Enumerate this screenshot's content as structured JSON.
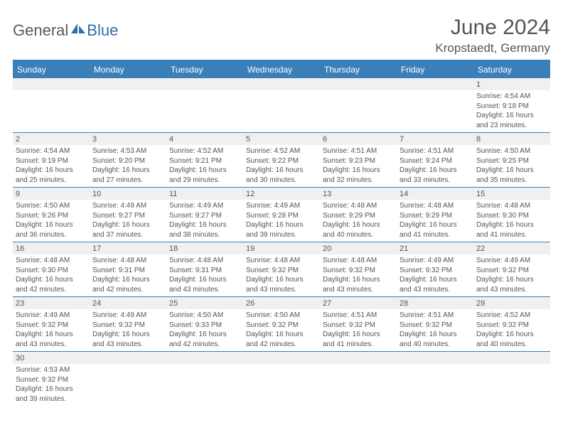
{
  "brand": {
    "part1": "General",
    "part2": "Blue"
  },
  "header": {
    "title": "June 2024",
    "location": "Kropstaedt, Germany"
  },
  "colors": {
    "header_bg": "#3b7fb8",
    "header_text": "#ffffff",
    "grid_line": "#3b7fb8",
    "daynum_bg": "#f0f0f0",
    "text": "#555555",
    "page_bg": "#ffffff"
  },
  "typography": {
    "title_fontsize": 30,
    "location_fontsize": 17,
    "dayheader_fontsize": 12,
    "daynum_fontsize": 11,
    "detail_fontsize": 10
  },
  "day_names": [
    "Sunday",
    "Monday",
    "Tuesday",
    "Wednesday",
    "Thursday",
    "Friday",
    "Saturday"
  ],
  "weeks": [
    {
      "nums": [
        "",
        "",
        "",
        "",
        "",
        "",
        "1"
      ],
      "sunrise": [
        "",
        "",
        "",
        "",
        "",
        "",
        "Sunrise: 4:54 AM"
      ],
      "sunset": [
        "",
        "",
        "",
        "",
        "",
        "",
        "Sunset: 9:18 PM"
      ],
      "day1": [
        "",
        "",
        "",
        "",
        "",
        "",
        "Daylight: 16 hours"
      ],
      "day2": [
        "",
        "",
        "",
        "",
        "",
        "",
        "and 23 minutes."
      ]
    },
    {
      "nums": [
        "2",
        "3",
        "4",
        "5",
        "6",
        "7",
        "8"
      ],
      "sunrise": [
        "Sunrise: 4:54 AM",
        "Sunrise: 4:53 AM",
        "Sunrise: 4:52 AM",
        "Sunrise: 4:52 AM",
        "Sunrise: 4:51 AM",
        "Sunrise: 4:51 AM",
        "Sunrise: 4:50 AM"
      ],
      "sunset": [
        "Sunset: 9:19 PM",
        "Sunset: 9:20 PM",
        "Sunset: 9:21 PM",
        "Sunset: 9:22 PM",
        "Sunset: 9:23 PM",
        "Sunset: 9:24 PM",
        "Sunset: 9:25 PM"
      ],
      "day1": [
        "Daylight: 16 hours",
        "Daylight: 16 hours",
        "Daylight: 16 hours",
        "Daylight: 16 hours",
        "Daylight: 16 hours",
        "Daylight: 16 hours",
        "Daylight: 16 hours"
      ],
      "day2": [
        "and 25 minutes.",
        "and 27 minutes.",
        "and 29 minutes.",
        "and 30 minutes.",
        "and 32 minutes.",
        "and 33 minutes.",
        "and 35 minutes."
      ]
    },
    {
      "nums": [
        "9",
        "10",
        "11",
        "12",
        "13",
        "14",
        "15"
      ],
      "sunrise": [
        "Sunrise: 4:50 AM",
        "Sunrise: 4:49 AM",
        "Sunrise: 4:49 AM",
        "Sunrise: 4:49 AM",
        "Sunrise: 4:48 AM",
        "Sunrise: 4:48 AM",
        "Sunrise: 4:48 AM"
      ],
      "sunset": [
        "Sunset: 9:26 PM",
        "Sunset: 9:27 PM",
        "Sunset: 9:27 PM",
        "Sunset: 9:28 PM",
        "Sunset: 9:29 PM",
        "Sunset: 9:29 PM",
        "Sunset: 9:30 PM"
      ],
      "day1": [
        "Daylight: 16 hours",
        "Daylight: 16 hours",
        "Daylight: 16 hours",
        "Daylight: 16 hours",
        "Daylight: 16 hours",
        "Daylight: 16 hours",
        "Daylight: 16 hours"
      ],
      "day2": [
        "and 36 minutes.",
        "and 37 minutes.",
        "and 38 minutes.",
        "and 39 minutes.",
        "and 40 minutes.",
        "and 41 minutes.",
        "and 41 minutes."
      ]
    },
    {
      "nums": [
        "16",
        "17",
        "18",
        "19",
        "20",
        "21",
        "22"
      ],
      "sunrise": [
        "Sunrise: 4:48 AM",
        "Sunrise: 4:48 AM",
        "Sunrise: 4:48 AM",
        "Sunrise: 4:48 AM",
        "Sunrise: 4:48 AM",
        "Sunrise: 4:49 AM",
        "Sunrise: 4:49 AM"
      ],
      "sunset": [
        "Sunset: 9:30 PM",
        "Sunset: 9:31 PM",
        "Sunset: 9:31 PM",
        "Sunset: 9:32 PM",
        "Sunset: 9:32 PM",
        "Sunset: 9:32 PM",
        "Sunset: 9:32 PM"
      ],
      "day1": [
        "Daylight: 16 hours",
        "Daylight: 16 hours",
        "Daylight: 16 hours",
        "Daylight: 16 hours",
        "Daylight: 16 hours",
        "Daylight: 16 hours",
        "Daylight: 16 hours"
      ],
      "day2": [
        "and 42 minutes.",
        "and 42 minutes.",
        "and 43 minutes.",
        "and 43 minutes.",
        "and 43 minutes.",
        "and 43 minutes.",
        "and 43 minutes."
      ]
    },
    {
      "nums": [
        "23",
        "24",
        "25",
        "26",
        "27",
        "28",
        "29"
      ],
      "sunrise": [
        "Sunrise: 4:49 AM",
        "Sunrise: 4:49 AM",
        "Sunrise: 4:50 AM",
        "Sunrise: 4:50 AM",
        "Sunrise: 4:51 AM",
        "Sunrise: 4:51 AM",
        "Sunrise: 4:52 AM"
      ],
      "sunset": [
        "Sunset: 9:32 PM",
        "Sunset: 9:32 PM",
        "Sunset: 9:33 PM",
        "Sunset: 9:32 PM",
        "Sunset: 9:32 PM",
        "Sunset: 9:32 PM",
        "Sunset: 9:32 PM"
      ],
      "day1": [
        "Daylight: 16 hours",
        "Daylight: 16 hours",
        "Daylight: 16 hours",
        "Daylight: 16 hours",
        "Daylight: 16 hours",
        "Daylight: 16 hours",
        "Daylight: 16 hours"
      ],
      "day2": [
        "and 43 minutes.",
        "and 43 minutes.",
        "and 42 minutes.",
        "and 42 minutes.",
        "and 41 minutes.",
        "and 40 minutes.",
        "and 40 minutes."
      ]
    },
    {
      "nums": [
        "30",
        "",
        "",
        "",
        "",
        "",
        ""
      ],
      "sunrise": [
        "Sunrise: 4:53 AM",
        "",
        "",
        "",
        "",
        "",
        ""
      ],
      "sunset": [
        "Sunset: 9:32 PM",
        "",
        "",
        "",
        "",
        "",
        ""
      ],
      "day1": [
        "Daylight: 16 hours",
        "",
        "",
        "",
        "",
        "",
        ""
      ],
      "day2": [
        "and 39 minutes.",
        "",
        "",
        "",
        "",
        "",
        ""
      ]
    }
  ]
}
